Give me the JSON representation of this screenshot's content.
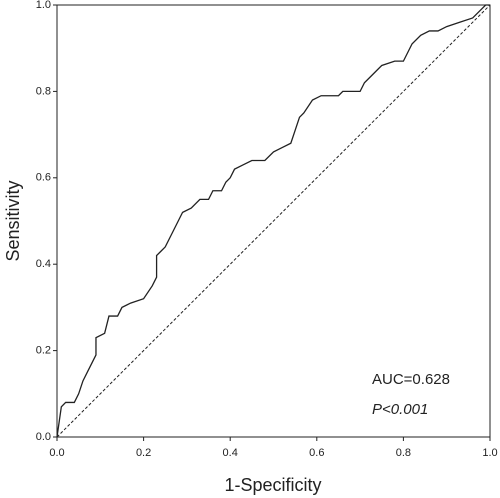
{
  "chart_data": {
    "type": "line",
    "x_label": "1-Specificity",
    "y_label": "Sensitivity",
    "annotations": [
      "AUC=0.628",
      "P<0.001"
    ],
    "xlim": [
      0,
      1
    ],
    "ylim": [
      0,
      1
    ],
    "xticks": [
      {
        "value": 0,
        "label": "0.0"
      },
      0.2,
      0.4,
      0.6,
      0.8,
      {
        "value": 1,
        "label": "1.0"
      }
    ],
    "yticks": [
      {
        "value": 0,
        "label": "0.0"
      },
      0.2,
      0.4,
      0.6,
      0.8,
      {
        "value": 1,
        "label": "1.0"
      }
    ],
    "grid": false,
    "series": [
      {
        "color": "#222222",
        "dashed": false,
        "x": [
          0,
          0.01,
          0.02,
          0.04,
          0.05,
          0.06,
          0.07,
          0.08,
          0.09,
          0.09,
          0.11,
          0.12,
          0.14,
          0.15,
          0.17,
          0.2,
          0.22,
          0.23,
          0.23,
          0.24,
          0.25,
          0.27,
          0.28,
          0.29,
          0.31,
          0.33,
          0.35,
          0.36,
          0.38,
          0.39,
          0.4,
          0.41,
          0.43,
          0.45,
          0.48,
          0.5,
          0.52,
          0.54,
          0.55,
          0.56,
          0.57,
          0.59,
          0.61,
          0.65,
          0.66,
          0.7,
          0.71,
          0.73,
          0.75,
          0.78,
          0.8,
          0.81,
          0.82,
          0.84,
          0.86,
          0.88,
          0.9,
          0.93,
          0.96,
          0.98,
          0.99,
          1
        ],
        "values": [
          0,
          0.07,
          0.08,
          0.08,
          0.1,
          0.13,
          0.15,
          0.17,
          0.19,
          0.23,
          0.24,
          0.28,
          0.28,
          0.3,
          0.31,
          0.32,
          0.35,
          0.37,
          0.42,
          0.43,
          0.44,
          0.48,
          0.5,
          0.52,
          0.53,
          0.55,
          0.55,
          0.57,
          0.57,
          0.59,
          0.6,
          0.62,
          0.63,
          0.64,
          0.64,
          0.66,
          0.67,
          0.68,
          0.71,
          0.74,
          0.75,
          0.78,
          0.79,
          0.79,
          0.8,
          0.8,
          0.82,
          0.84,
          0.86,
          0.87,
          0.87,
          0.89,
          0.91,
          0.93,
          0.94,
          0.94,
          0.95,
          0.96,
          0.97,
          0.99,
          1,
          1
        ]
      },
      {
        "color": "#222222",
        "dashed": true,
        "x": [
          0,
          1
        ],
        "values": [
          0,
          1
        ]
      }
    ]
  }
}
